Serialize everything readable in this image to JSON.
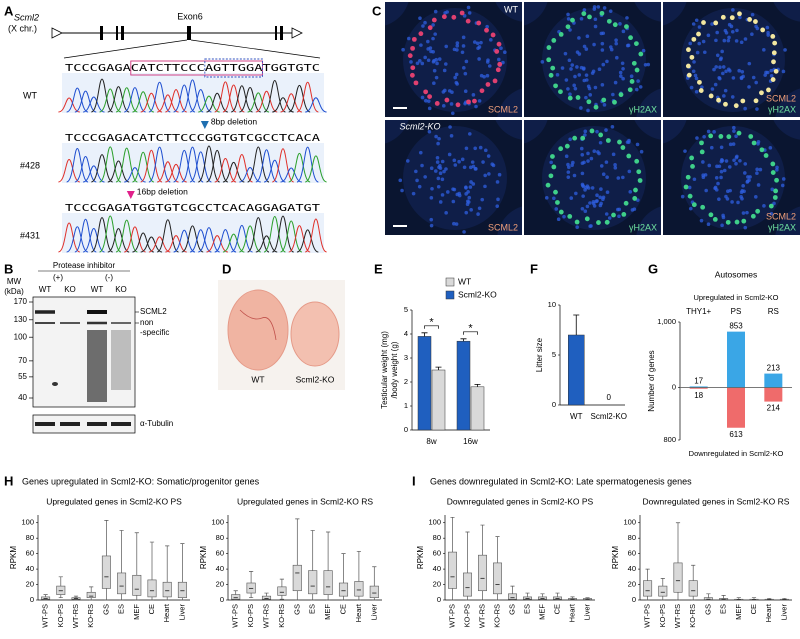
{
  "figure": {
    "panel_labels": [
      "A",
      "B",
      "C",
      "D",
      "E",
      "F",
      "G",
      "H",
      "I"
    ],
    "A": {
      "gene": "Scml2",
      "chromosome": "(X chr.)",
      "exon": "Exon6",
      "rows": [
        {
          "label": "WT",
          "sequence": "TCCCGAGACATCTTCCCAGTTGGATGGTGTC"
        },
        {
          "label": "#428",
          "sequence": "TCCCGAGACATCTTCCCGGTGTCGCCTCACA",
          "annotation": "8bp deletion"
        },
        {
          "label": "#431",
          "sequence": "TCCCGAGATGGTGTCGCCTCACAGGAGATGT",
          "annotation": "16bp deletion"
        }
      ]
    },
    "B": {
      "header": "Protease inhibitor",
      "conditions": [
        "(+)",
        "(-)"
      ],
      "mw_label": [
        "MW",
        "(kDa)"
      ],
      "lanes": [
        "WT",
        "KO",
        "WT",
        "KO"
      ],
      "mw": [
        170,
        130,
        100,
        70,
        55,
        40
      ],
      "bands": [
        "SCML2",
        "non",
        "-specific"
      ],
      "loading": "α-Tubulin"
    },
    "C": {
      "row_labels": [
        "WT",
        "Scml2-KO"
      ],
      "channels": [
        "SCML2",
        "γH2AX"
      ]
    },
    "D": {
      "labels": [
        "WT",
        "Scml2-KO"
      ]
    },
    "H": {
      "title": "Genes upregulated in Scml2-KO: Somatic/progenitor genes"
    },
    "I": {
      "title": "Genes downregulated in Scml2-KO: Late spermatogenesis genes"
    }
  },
  "chart_data": [
    {
      "type": "bar",
      "ylabel": [
        "Testicular weight (mg)",
        "/body weight (g)"
      ],
      "categories": [
        "8w",
        "16w"
      ],
      "series": [
        {
          "name": "WT",
          "color": "#d9d9d9",
          "values": [
            2.5,
            1.8
          ],
          "errors": [
            0.12,
            0.1
          ]
        },
        {
          "name": "Scml2-KO",
          "color": "#1f5fbf",
          "values": [
            3.9,
            3.7
          ],
          "errors": [
            0.15,
            0.1
          ]
        }
      ],
      "annotations": [
        "*",
        "*"
      ],
      "ylim": [
        0,
        5
      ],
      "yticks": [
        0,
        1,
        2,
        3,
        4,
        5
      ]
    },
    {
      "type": "bar",
      "ylabel": "Litter size",
      "categories": [
        "WT",
        "Scml2-KO"
      ],
      "values": [
        7,
        0
      ],
      "errors": [
        2,
        null
      ],
      "labeled": [
        false,
        true
      ],
      "color": "#1f5fbf",
      "ylim": [
        0,
        10
      ],
      "yticks": [
        0,
        5,
        10
      ]
    },
    {
      "type": "diverging_bar",
      "title": "Autosomes",
      "ylabel": "Number of genes",
      "categories": [
        "THY1+",
        "PS",
        "RS"
      ],
      "series": [
        {
          "name": "Upregulated in Scml2-KO",
          "color": "#3aa6e6",
          "values": [
            17,
            853,
            213
          ]
        },
        {
          "name": "Downregulated in Scml2-KO",
          "color": "#ef6b6b",
          "values": [
            -18,
            -613,
            -214
          ],
          "value_labels": [
            "18",
            "613",
            "214"
          ]
        }
      ],
      "ylim": [
        -800,
        1000
      ],
      "yticks": [
        {
          "value": -800,
          "label": "800"
        },
        0,
        {
          "value": 1000,
          "label": "1,000"
        }
      ]
    },
    {
      "type": "box",
      "title": "Upregulated genes in Scml2-KO PS",
      "ylabel": "RPKM",
      "color": "#d9d9d9",
      "categories": [
        "WT-PS",
        "KO-PS",
        "WT-RS",
        "KO-RS",
        "GS",
        "ES",
        "MEF",
        "CE",
        "Heart",
        "Liver"
      ],
      "low": [
        0,
        3,
        0,
        0,
        0,
        0,
        0,
        0,
        0,
        0
      ],
      "q1": [
        1,
        7,
        1,
        3,
        15,
        8,
        6,
        4,
        4,
        3
      ],
      "median": [
        2,
        12,
        2,
        5,
        30,
        18,
        14,
        12,
        12,
        12
      ],
      "q3": [
        4,
        18,
        3,
        10,
        57,
        35,
        32,
        26,
        23,
        23
      ],
      "high": [
        7,
        30,
        5,
        17,
        103,
        90,
        87,
        75,
        70,
        73
      ],
      "ylim": [
        0,
        110
      ],
      "yticks": [
        0,
        20,
        40,
        60,
        80,
        100
      ]
    },
    {
      "type": "box",
      "title": "Upregulated genes in Scml2-KO RS",
      "ylabel": "RPKM",
      "color": "#d9d9d9",
      "categories": [
        "WT-PS",
        "KO-PS",
        "WT-RS",
        "KO-RS",
        "GS",
        "ES",
        "MEF",
        "CE",
        "Heart",
        "Liver"
      ],
      "low": [
        0,
        3,
        0,
        1,
        0,
        0,
        0,
        0,
        0,
        0
      ],
      "q1": [
        1,
        9,
        1,
        6,
        12,
        8,
        7,
        5,
        5,
        3
      ],
      "median": [
        3,
        15,
        2,
        10,
        35,
        18,
        17,
        12,
        13,
        9
      ],
      "q3": [
        7,
        22,
        5,
        17,
        45,
        38,
        38,
        22,
        24,
        18
      ],
      "high": [
        12,
        37,
        9,
        27,
        105,
        90,
        88,
        60,
        63,
        43
      ],
      "ylim": [
        0,
        110
      ],
      "yticks": [
        0,
        20,
        40,
        60,
        80,
        100
      ]
    },
    {
      "type": "box",
      "title": "Downregulated genes in Scml2-KO PS",
      "ylabel": "RPKM",
      "color": "#d9d9d9",
      "categories": [
        "WT-PS",
        "KO-PS",
        "WT-RS",
        "KO-RS",
        "GS",
        "ES",
        "MEF",
        "CE",
        "Heart",
        "Liver"
      ],
      "low": [
        0,
        0,
        0,
        0,
        0,
        0,
        0,
        0,
        0,
        0
      ],
      "q1": [
        15,
        5,
        12,
        8,
        1,
        1,
        1,
        1,
        0.5,
        0.5
      ],
      "median": [
        30,
        16,
        28,
        20,
        3,
        2,
        2,
        2,
        1,
        1
      ],
      "q3": [
        62,
        35,
        58,
        48,
        8,
        4,
        4,
        4,
        2,
        2
      ],
      "high": [
        107,
        88,
        97,
        82,
        18,
        9,
        8,
        9,
        4,
        3
      ],
      "ylim": [
        0,
        110
      ],
      "yticks": [
        0,
        20,
        40,
        60,
        80,
        100
      ]
    },
    {
      "type": "box",
      "title": "Downregulated genes in Scml2-KO RS",
      "ylabel": "RPKM",
      "color": "#d9d9d9",
      "categories": [
        "WT-PS",
        "KO-PS",
        "WT-RS",
        "KO-RS",
        "GS",
        "ES",
        "MEF",
        "CE",
        "Heart",
        "Liver"
      ],
      "low": [
        0,
        0,
        0,
        0,
        0,
        0,
        0,
        0,
        0,
        0
      ],
      "q1": [
        5,
        5,
        10,
        5,
        0.5,
        0.5,
        0,
        0,
        0,
        0
      ],
      "median": [
        12,
        10,
        25,
        12,
        1,
        1,
        0.5,
        0.5,
        0.5,
        0.5
      ],
      "q3": [
        25,
        18,
        48,
        25,
        3,
        2,
        1,
        1,
        1,
        1
      ],
      "high": [
        40,
        28,
        100,
        45,
        8,
        6,
        3,
        3,
        2,
        2
      ],
      "ylim": [
        0,
        110
      ],
      "yticks": [
        0,
        20,
        40,
        60,
        80,
        100
      ]
    }
  ]
}
